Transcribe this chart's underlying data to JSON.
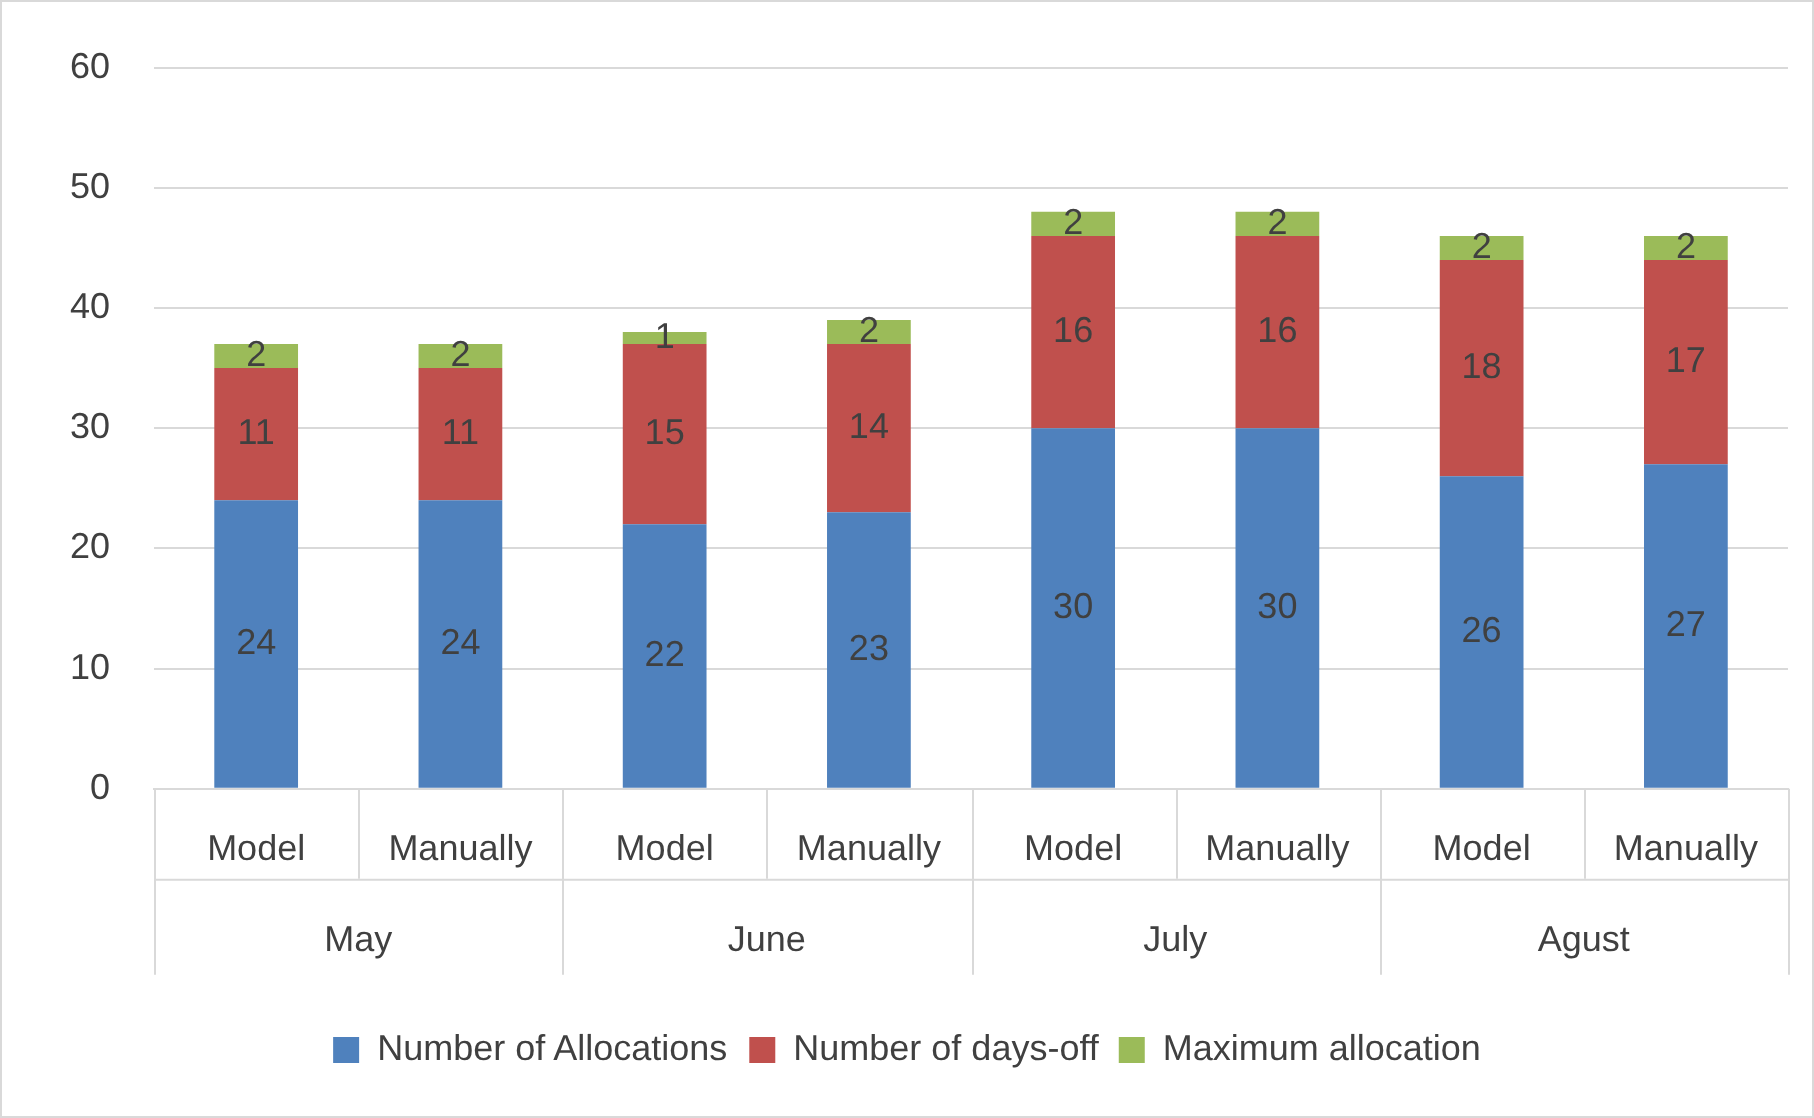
{
  "chart_data": {
    "type": "bar",
    "stacked": true,
    "categories": [
      "Model",
      "Manually",
      "Model",
      "Manually",
      "Model",
      "Manually",
      "Model",
      "Manually"
    ],
    "annotations": [
      "May",
      "June",
      "July",
      "Agust"
    ],
    "series": [
      {
        "name": "Number of Allocations",
        "color": "#4f81bd",
        "values": [
          24,
          24,
          22,
          23,
          30,
          30,
          26,
          27
        ]
      },
      {
        "name": "Number of days-off",
        "color": "#c0504d",
        "values": [
          11,
          11,
          15,
          14,
          16,
          16,
          18,
          17
        ]
      },
      {
        "name": "Maximum allocation",
        "color": "#9bbb59",
        "values": [
          2,
          2,
          1,
          2,
          2,
          2,
          2,
          2
        ]
      }
    ],
    "ylim": [
      0,
      60
    ],
    "yticks": [
      0,
      10,
      20,
      30,
      40,
      50,
      60
    ],
    "grid": "y",
    "legend": "bottom",
    "data_labels": true
  }
}
